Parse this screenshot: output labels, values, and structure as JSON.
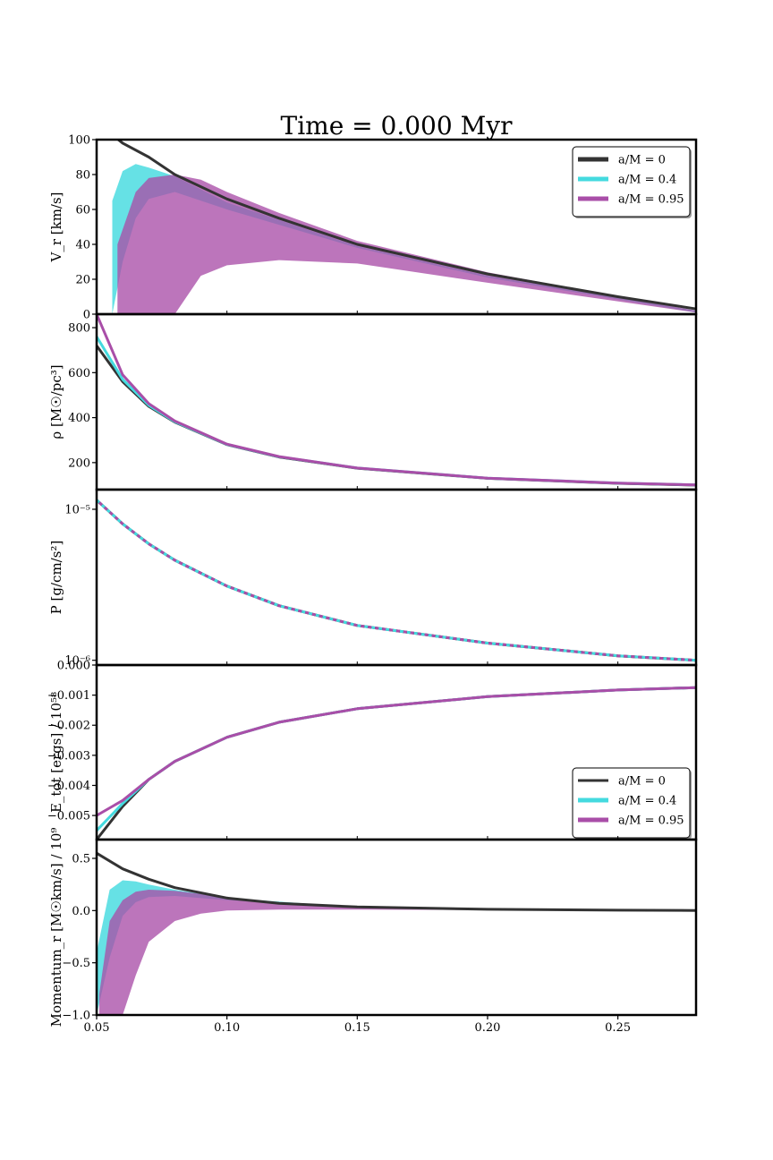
{
  "figure_title": "Time = 0.000 Myr",
  "colors": {
    "a0": "#333333",
    "a04": "#44dadf",
    "a095": "#a94ea8",
    "overlap": "#6c5496"
  },
  "legend_labels": [
    "a/M = 0",
    "a/M = 0.4",
    "a/M = 0.95"
  ],
  "xaxis": {
    "range": [
      0.05,
      0.28
    ],
    "ticks": [
      0.05,
      0.1,
      0.15,
      0.2,
      0.25
    ],
    "tick_labels": [
      "0.05",
      "0.10",
      "0.15",
      "0.20",
      "0.25"
    ]
  },
  "chart_data": [
    {
      "type": "line",
      "panel": "vr",
      "ylabel": "V_r [km/s]",
      "ylim": [
        0,
        100
      ],
      "yticks": [
        0,
        20,
        40,
        60,
        80,
        100
      ],
      "ytick_labels": [
        "0",
        "20",
        "40",
        "60",
        "80",
        "100"
      ],
      "legend": "top-right",
      "series": [
        {
          "name": "a/M = 0",
          "x": [
            0.05,
            0.06,
            0.07,
            0.08,
            0.1,
            0.12,
            0.15,
            0.2,
            0.25,
            0.28
          ],
          "y": [
            110,
            98,
            90,
            80,
            66,
            55,
            40,
            23,
            10,
            3
          ]
        },
        {
          "name": "a/M = 0.4",
          "band_x": [
            0.056,
            0.06,
            0.065,
            0.07,
            0.08,
            0.1,
            0.15,
            0.2,
            0.28
          ],
          "upper": [
            65,
            82,
            86,
            84,
            79,
            64,
            39,
            22,
            2
          ],
          "lower": [
            0,
            30,
            55,
            66,
            70,
            60,
            38,
            21,
            1
          ]
        },
        {
          "name": "a/M = 0.95",
          "band_x": [
            0.058,
            0.065,
            0.07,
            0.08,
            0.09,
            0.1,
            0.12,
            0.15,
            0.2,
            0.28
          ],
          "upper": [
            40,
            70,
            78,
            80,
            77,
            70,
            58,
            42,
            24,
            2
          ],
          "lower": [
            0,
            0,
            0,
            0,
            22,
            28,
            31,
            29,
            18,
            1
          ]
        }
      ]
    },
    {
      "type": "line",
      "panel": "rho",
      "ylabel": "ρ [M☉/pc³]",
      "ylim": [
        80,
        860
      ],
      "yticks": [
        200,
        400,
        600,
        800
      ],
      "ytick_labels": [
        "200",
        "400",
        "600",
        "800"
      ],
      "series": [
        {
          "name": "a/M = 0",
          "x": [
            0.05,
            0.06,
            0.07,
            0.08,
            0.1,
            0.12,
            0.15,
            0.2,
            0.25,
            0.28
          ],
          "y": [
            720,
            560,
            450,
            380,
            280,
            225,
            175,
            130,
            108,
            100
          ]
        },
        {
          "name": "a/M = 0.4",
          "x": [
            0.05,
            0.06,
            0.07,
            0.08,
            0.1,
            0.12,
            0.15,
            0.2,
            0.25,
            0.28
          ],
          "y": [
            760,
            570,
            455,
            382,
            281,
            226,
            176,
            131,
            109,
            101
          ]
        },
        {
          "name": "a/M = 0.95",
          "x": [
            0.05,
            0.06,
            0.07,
            0.08,
            0.1,
            0.12,
            0.15,
            0.2,
            0.25,
            0.28
          ],
          "y": [
            860,
            590,
            462,
            385,
            282,
            227,
            176,
            131,
            109,
            101
          ]
        }
      ]
    },
    {
      "type": "line",
      "panel": "pressure",
      "ylabel": "P [g/cm/s²]",
      "yscale": "log",
      "ylim": [
        9.3e-07,
        1.35e-05
      ],
      "yticks": [
        1e-05,
        1e-06
      ],
      "ytick_labels": [
        "10⁻⁵",
        "10⁻⁶"
      ],
      "series": [
        {
          "name": "a/M = 0",
          "x": [
            0.05,
            0.06,
            0.07,
            0.08,
            0.1,
            0.12,
            0.15,
            0.2,
            0.25,
            0.28
          ],
          "y": [
            1.15e-05,
            8e-06,
            5.9e-06,
            4.6e-06,
            3.1e-06,
            2.3e-06,
            1.7e-06,
            1.3e-06,
            1.07e-06,
            1e-06
          ]
        },
        {
          "name": "a/M = 0.4",
          "x": [
            0.05,
            0.06,
            0.07,
            0.08,
            0.1,
            0.12,
            0.15,
            0.2,
            0.25,
            0.28
          ],
          "y": [
            1.15e-05,
            8e-06,
            5.9e-06,
            4.6e-06,
            3.1e-06,
            2.3e-06,
            1.7e-06,
            1.3e-06,
            1.07e-06,
            1e-06
          ]
        },
        {
          "name": "a/M = 0.95",
          "x": [
            0.05,
            0.06,
            0.07,
            0.08,
            0.1,
            0.12,
            0.15,
            0.2,
            0.25,
            0.28
          ],
          "y": [
            1.15e-05,
            8e-06,
            5.9e-06,
            4.6e-06,
            3.1e-06,
            2.3e-06,
            1.7e-06,
            1.3e-06,
            1.07e-06,
            1e-06
          ]
        }
      ]
    },
    {
      "type": "line",
      "panel": "etot",
      "ylabel": "E_tot [ergs] / 10⁵⁸",
      "ylim": [
        -0.0058,
        0.0
      ],
      "yticks": [
        0.0,
        -0.001,
        -0.002,
        -0.003,
        -0.004,
        -0.005
      ],
      "ytick_labels": [
        "0.000",
        "−0.001",
        "−0.002",
        "−0.003",
        "−0.004",
        "−0.005"
      ],
      "legend": "lower-right",
      "series": [
        {
          "name": "a/M = 0",
          "x": [
            0.05,
            0.06,
            0.07,
            0.08,
            0.1,
            0.12,
            0.15,
            0.2,
            0.25,
            0.28
          ],
          "y": [
            -0.0058,
            -0.0047,
            -0.0038,
            -0.0032,
            -0.0024,
            -0.0019,
            -0.00145,
            -0.00105,
            -0.00083,
            -0.00075
          ]
        },
        {
          "name": "a/M = 0.4",
          "x": [
            0.05,
            0.06,
            0.07,
            0.08,
            0.1,
            0.12,
            0.15,
            0.2,
            0.25,
            0.28
          ],
          "y": [
            -0.0055,
            -0.0046,
            -0.0038,
            -0.0032,
            -0.0024,
            -0.0019,
            -0.00145,
            -0.00105,
            -0.00083,
            -0.00075
          ]
        },
        {
          "name": "a/M = 0.95",
          "x": [
            0.05,
            0.06,
            0.07,
            0.08,
            0.1,
            0.12,
            0.15,
            0.2,
            0.25,
            0.28
          ],
          "y": [
            -0.005,
            -0.0045,
            -0.0038,
            -0.0032,
            -0.0024,
            -0.0019,
            -0.00145,
            -0.00105,
            -0.00083,
            -0.00075
          ]
        }
      ]
    },
    {
      "type": "line",
      "panel": "momentum",
      "ylabel": "Momentum_r [M☉km/s] / 10⁹",
      "ylim": [
        -1.0,
        0.68
      ],
      "yticks": [
        0.5,
        0.0,
        -0.5,
        -1.0
      ],
      "ytick_labels": [
        "0.5",
        "0.0",
        "−0.5",
        "−1.0"
      ],
      "series": [
        {
          "name": "a/M = 0",
          "x": [
            0.05,
            0.06,
            0.07,
            0.08,
            0.1,
            0.12,
            0.15,
            0.2,
            0.25,
            0.28
          ],
          "y": [
            0.55,
            0.4,
            0.3,
            0.22,
            0.12,
            0.07,
            0.035,
            0.012,
            0.004,
            0.001
          ]
        },
        {
          "name": "a/M = 0.4",
          "band_x": [
            0.05,
            0.055,
            0.06,
            0.065,
            0.07,
            0.08,
            0.1,
            0.15,
            0.2,
            0.28
          ],
          "upper": [
            -0.4,
            0.2,
            0.29,
            0.28,
            0.25,
            0.2,
            0.12,
            0.035,
            0.012,
            0.001
          ],
          "lower": [
            -1.0,
            -0.45,
            -0.05,
            0.08,
            0.13,
            0.14,
            0.1,
            0.03,
            0.011,
            0.001
          ]
        },
        {
          "name": "a/M = 0.95",
          "band_x": [
            0.051,
            0.055,
            0.06,
            0.065,
            0.07,
            0.08,
            0.09,
            0.1,
            0.12,
            0.15,
            0.2,
            0.28
          ],
          "upper": [
            -0.8,
            -0.1,
            0.1,
            0.18,
            0.2,
            0.19,
            0.16,
            0.12,
            0.07,
            0.035,
            0.012,
            0.001
          ],
          "lower": [
            -1.0,
            -1.0,
            -1.0,
            -0.62,
            -0.3,
            -0.1,
            -0.03,
            0.0,
            0.01,
            0.01,
            0.005,
            0.0
          ]
        }
      ]
    }
  ]
}
